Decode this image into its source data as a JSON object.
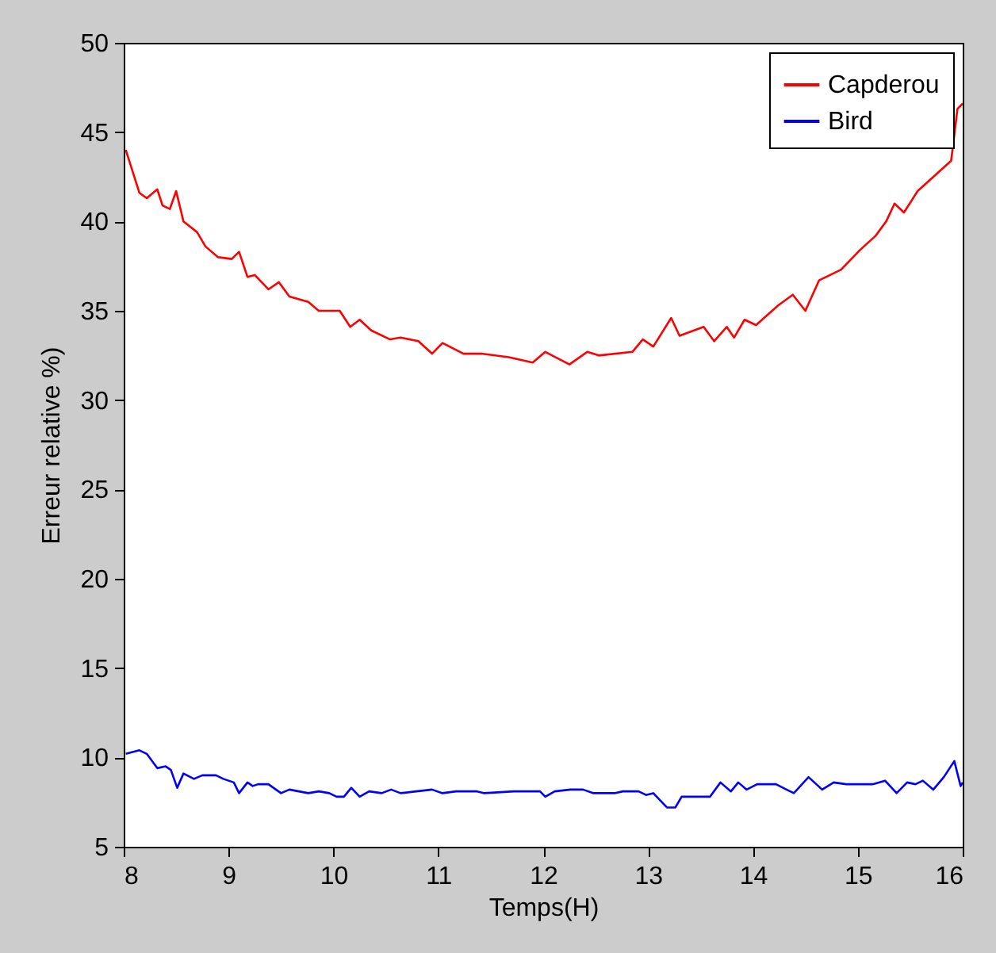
{
  "chart_data": {
    "type": "line",
    "xlabel": "Temps(H)",
    "ylabel": "Erreur relative %)",
    "xlim": [
      8,
      16
    ],
    "ylim": [
      5,
      50
    ],
    "xticks": [
      8,
      9,
      10,
      11,
      12,
      13,
      14,
      15,
      16
    ],
    "yticks": [
      5,
      10,
      15,
      20,
      25,
      30,
      35,
      40,
      45,
      50
    ],
    "grid": false,
    "legend": "top right",
    "line_style": "solid",
    "marker": "none",
    "series": [
      {
        "name": "Capderou",
        "color": "#ff0000",
        "x": [
          8.02,
          8.15,
          8.22,
          8.32,
          8.37,
          8.44,
          8.5,
          8.57,
          8.7,
          8.78,
          8.9,
          9.03,
          9.1,
          9.18,
          9.25,
          9.38,
          9.48,
          9.58,
          9.76,
          9.86,
          10.06,
          10.16,
          10.25,
          10.36,
          10.54,
          10.64,
          10.81,
          10.94,
          11.04,
          11.24,
          11.41,
          11.67,
          11.9,
          12.02,
          12.25,
          12.42,
          12.53,
          12.85,
          12.95,
          13.05,
          13.22,
          13.3,
          13.53,
          13.63,
          13.75,
          13.82,
          13.92,
          14.03,
          14.24,
          14.38,
          14.5,
          14.63,
          14.84,
          15.02,
          15.17,
          15.27,
          15.35,
          15.44,
          15.57,
          15.89,
          15.95,
          16.0
        ],
        "values": [
          44.0,
          41.6,
          41.3,
          41.8,
          40.9,
          40.7,
          41.7,
          40.0,
          39.4,
          38.6,
          38.0,
          37.9,
          38.3,
          36.9,
          37.0,
          36.2,
          36.6,
          35.8,
          35.5,
          35.0,
          35.0,
          34.1,
          34.5,
          33.9,
          33.4,
          33.5,
          33.3,
          32.6,
          33.2,
          32.6,
          32.6,
          32.4,
          32.1,
          32.7,
          32.0,
          32.7,
          32.5,
          32.7,
          33.4,
          33.0,
          34.6,
          33.6,
          34.1,
          33.3,
          34.1,
          33.5,
          34.5,
          34.2,
          35.3,
          35.9,
          35.0,
          36.7,
          37.3,
          38.4,
          39.2,
          40.0,
          41.0,
          40.5,
          41.7,
          43.4,
          46.3,
          46.6
        ]
      },
      {
        "name": "Bird",
        "color": "#0000ff",
        "x": [
          8.02,
          8.15,
          8.22,
          8.32,
          8.4,
          8.45,
          8.51,
          8.57,
          8.67,
          8.75,
          8.88,
          8.95,
          9.05,
          9.1,
          9.18,
          9.23,
          9.28,
          9.38,
          9.5,
          9.58,
          9.76,
          9.86,
          9.96,
          10.03,
          10.1,
          10.17,
          10.25,
          10.34,
          10.46,
          10.55,
          10.64,
          10.79,
          10.94,
          11.04,
          11.17,
          11.37,
          11.44,
          11.72,
          11.97,
          12.02,
          12.11,
          12.26,
          12.38,
          12.48,
          12.68,
          12.76,
          12.91,
          12.98,
          13.05,
          13.18,
          13.26,
          13.32,
          13.59,
          13.69,
          13.79,
          13.86,
          13.94,
          14.04,
          14.22,
          14.32,
          14.39,
          14.53,
          14.66,
          14.77,
          14.89,
          15.14,
          15.26,
          15.37,
          15.47,
          15.55,
          15.62,
          15.72,
          15.82,
          15.92,
          15.98,
          16.0
        ],
        "values": [
          10.2,
          10.4,
          10.2,
          9.4,
          9.5,
          9.3,
          8.3,
          9.1,
          8.8,
          9.0,
          9.0,
          8.8,
          8.6,
          8.0,
          8.6,
          8.4,
          8.5,
          8.5,
          8.0,
          8.2,
          8.0,
          8.1,
          8.0,
          7.8,
          7.8,
          8.3,
          7.8,
          8.1,
          8.0,
          8.2,
          8.0,
          8.1,
          8.2,
          8.0,
          8.1,
          8.1,
          8.0,
          8.1,
          8.1,
          7.8,
          8.1,
          8.2,
          8.2,
          8.0,
          8.0,
          8.1,
          8.1,
          7.9,
          8.0,
          7.2,
          7.2,
          7.8,
          7.8,
          8.6,
          8.1,
          8.6,
          8.2,
          8.5,
          8.5,
          8.2,
          8.0,
          8.9,
          8.2,
          8.6,
          8.5,
          8.5,
          8.7,
          8.0,
          8.6,
          8.5,
          8.7,
          8.2,
          8.9,
          9.8,
          8.4,
          8.6
        ]
      }
    ]
  }
}
